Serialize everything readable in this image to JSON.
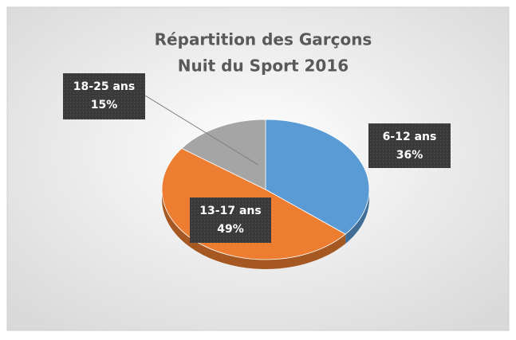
{
  "chart_data": {
    "type": "pie",
    "title": "Répartition des Garçons",
    "subtitle": "Nuit du Sport 2016",
    "categories": [
      "6-12 ans",
      "13-17 ans",
      "18-25 ans"
    ],
    "values": [
      36,
      49,
      15
    ],
    "value_labels": [
      "36%",
      "49%",
      "15%"
    ],
    "colors": [
      "#5b9bd5",
      "#ed7d31",
      "#a5a5a5"
    ]
  }
}
